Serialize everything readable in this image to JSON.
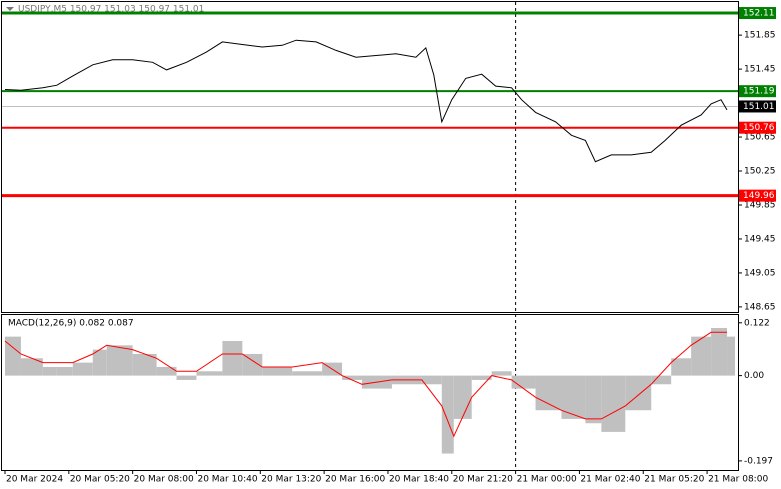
{
  "chart_data": {
    "type": "line",
    "title": "USDJPY,M5  150.97 151.03 150.97 151.01",
    "xlim": [
      -7.5,
      1837.5
    ],
    "xticks": [
      {
        "value": 0,
        "label": "20 Mar 2024"
      },
      {
        "value": 160,
        "label": "20 Mar 05:20"
      },
      {
        "value": 320,
        "label": "20 Mar 08:00"
      },
      {
        "value": 480,
        "label": "20 Mar 10:40"
      },
      {
        "value": 640,
        "label": "20 Mar 13:20"
      },
      {
        "value": 800,
        "label": "20 Mar 16:00"
      },
      {
        "value": 960,
        "label": "20 Mar 18:40"
      },
      {
        "value": 1120,
        "label": "20 Mar 21:20"
      },
      {
        "value": 1280,
        "label": "21 Mar 00:00"
      },
      {
        "value": 1440,
        "label": "21 Mar 02:40"
      },
      {
        "value": 1600,
        "label": "21 Mar 05:20"
      },
      {
        "value": 1760,
        "label": "21 Mar 08:00"
      }
    ],
    "period_separator": 1280,
    "ylim": [
      148.59,
      152.24
    ],
    "yticks": [
      151.85,
      151.45,
      150.65,
      150.25,
      149.85,
      149.45,
      149.05,
      148.65
    ],
    "x": [
      0,
      40,
      95,
      130,
      170,
      220,
      270,
      320,
      370,
      405,
      455,
      505,
      545,
      595,
      645,
      695,
      730,
      780,
      830,
      880,
      930,
      980,
      1030,
      1055,
      1075,
      1095,
      1120,
      1155,
      1195,
      1230,
      1270,
      1295,
      1330,
      1380,
      1420,
      1455,
      1480,
      1520,
      1570,
      1620,
      1655,
      1695,
      1745,
      1770,
      1795,
      1810
    ],
    "series": [
      {
        "color": "#000000",
        "values": [
          151.21,
          151.2,
          151.23,
          151.26,
          151.37,
          151.5,
          151.56,
          151.56,
          151.53,
          151.44,
          151.53,
          151.65,
          151.77,
          151.74,
          151.71,
          151.73,
          151.79,
          151.77,
          151.67,
          151.59,
          151.61,
          151.63,
          151.59,
          151.7,
          151.38,
          150.83,
          151.09,
          151.34,
          151.39,
          151.25,
          151.23,
          151.09,
          150.94,
          150.83,
          150.67,
          150.61,
          150.36,
          150.44,
          150.44,
          150.47,
          150.61,
          150.79,
          150.91,
          151.04,
          151.09,
          150.97
        ]
      }
    ],
    "levels": [
      {
        "value": 152.11,
        "color": "#008000"
      },
      {
        "value": 151.19,
        "color": "#008000"
      },
      {
        "value": 150.76,
        "color": "#ff0000"
      },
      {
        "value": 149.96,
        "color": "#ff0000"
      }
    ],
    "last_price": 151.01,
    "macd": {
      "label": "MACD(12,26,9) 0.082 0.087",
      "ylim": [
        -0.218,
        0.14
      ],
      "yticks": [
        0.122,
        {
          "value": 0,
          "label": "0.00"
        },
        -0.197
      ],
      "x": [
        0,
        40,
        95,
        130,
        170,
        220,
        255,
        320,
        380,
        430,
        480,
        545,
        595,
        645,
        720,
        795,
        845,
        895,
        970,
        1045,
        1095,
        1125,
        1170,
        1220,
        1270,
        1330,
        1395,
        1455,
        1495,
        1555,
        1620,
        1670,
        1720,
        1770,
        1810
      ],
      "histogram": {
        "color": "#c0c0c0",
        "values": [
          0.09,
          0.04,
          0.02,
          0.02,
          0.03,
          0.06,
          0.07,
          0.05,
          0.02,
          -0.01,
          0.01,
          0.08,
          0.05,
          0.02,
          0.01,
          0.03,
          -0.01,
          -0.03,
          -0.02,
          -0.02,
          -0.18,
          -0.1,
          -0.01,
          0.01,
          -0.03,
          -0.08,
          -0.1,
          -0.11,
          -0.13,
          -0.08,
          -0.02,
          0.04,
          0.09,
          0.11,
          0.09
        ]
      },
      "signal": {
        "color": "#ff0000",
        "values": [
          0.08,
          0.05,
          0.03,
          0.03,
          0.03,
          0.05,
          0.07,
          0.06,
          0.04,
          0.01,
          0.01,
          0.05,
          0.05,
          0.02,
          0.02,
          0.03,
          0.0,
          -0.02,
          -0.01,
          -0.01,
          -0.07,
          -0.14,
          -0.05,
          0.0,
          -0.01,
          -0.05,
          -0.08,
          -0.1,
          -0.1,
          -0.07,
          -0.02,
          0.03,
          0.07,
          0.1,
          0.1
        ]
      }
    }
  }
}
